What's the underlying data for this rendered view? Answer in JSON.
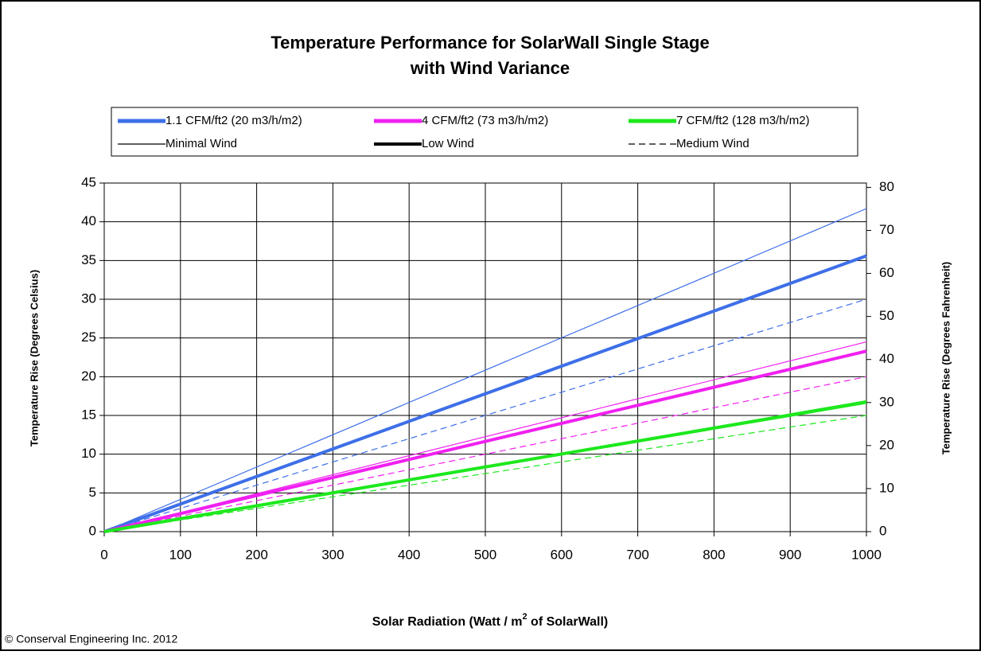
{
  "chart_data": {
    "type": "line",
    "title": [
      "Temperature Performance for SolarWall Single Stage",
      "with Wind Variance"
    ],
    "x_label": [
      "Solar Radiation (Watt / m",
      "2",
      " of SolarWall)"
    ],
    "y_label": "Temperature Rise (Degrees Celsius)",
    "y2_label": "Temperature Rise (Degrees Fahrenheit)",
    "footer": "© Conserval Engineering Inc. 2012",
    "xlim": [
      0,
      1000
    ],
    "xticks": [
      0,
      100,
      200,
      300,
      400,
      500,
      600,
      700,
      800,
      900,
      1000
    ],
    "ylim": [
      0,
      45
    ],
    "yticks": [
      0,
      5,
      10,
      15,
      20,
      25,
      30,
      35,
      40,
      45
    ],
    "y2lim": [
      0,
      81
    ],
    "y2ticks": [
      0,
      10,
      20,
      30,
      40,
      50,
      60,
      70,
      80
    ],
    "grid": true,
    "legend_colors": [
      {
        "name": "1.1 CFM/ft2 (20 m3/h/m2)",
        "color": "#3e6fe8"
      },
      {
        "name": "4 CFM/ft2 (73 m3/h/m2)",
        "color": "#f020f0"
      },
      {
        "name": "7 CFM/ft2 (128 m3/h/m2)",
        "color": "#1de81d"
      }
    ],
    "legend_styles": [
      {
        "name": "Minimal Wind",
        "width": 1.2,
        "dash": "none"
      },
      {
        "name": "Low Wind",
        "width": 4,
        "dash": "none"
      },
      {
        "name": "Medium Wind",
        "width": 1.2,
        "dash": "8 5"
      }
    ],
    "series": [
      {
        "color": "#3e6fe8",
        "width": 1.2,
        "dash": "none",
        "x": [
          0,
          1000
        ],
        "values": [
          0,
          41.7
        ]
      },
      {
        "color": "#3e6fe8",
        "width": 4,
        "dash": "none",
        "x": [
          0,
          1000
        ],
        "values": [
          0,
          35.6
        ]
      },
      {
        "color": "#3e6fe8",
        "width": 1.2,
        "dash": "8 5",
        "x": [
          0,
          1000
        ],
        "values": [
          0,
          30
        ]
      },
      {
        "color": "#f020f0",
        "width": 1.2,
        "dash": "none",
        "x": [
          0,
          1000
        ],
        "values": [
          0,
          24.5
        ]
      },
      {
        "color": "#f020f0",
        "width": 4,
        "dash": "none",
        "x": [
          0,
          1000
        ],
        "values": [
          0,
          23.3
        ]
      },
      {
        "color": "#f020f0",
        "width": 1.2,
        "dash": "8 5",
        "x": [
          0,
          1000
        ],
        "values": [
          0,
          20
        ]
      },
      {
        "color": "#1de81d",
        "width": 1.2,
        "dash": "none",
        "x": [
          0,
          1000
        ],
        "values": [
          0,
          16.9
        ]
      },
      {
        "color": "#1de81d",
        "width": 4,
        "dash": "none",
        "x": [
          0,
          1000
        ],
        "values": [
          0,
          16.7
        ]
      },
      {
        "color": "#1de81d",
        "width": 1.2,
        "dash": "8 5",
        "x": [
          0,
          1000
        ],
        "values": [
          0,
          15
        ]
      }
    ]
  }
}
